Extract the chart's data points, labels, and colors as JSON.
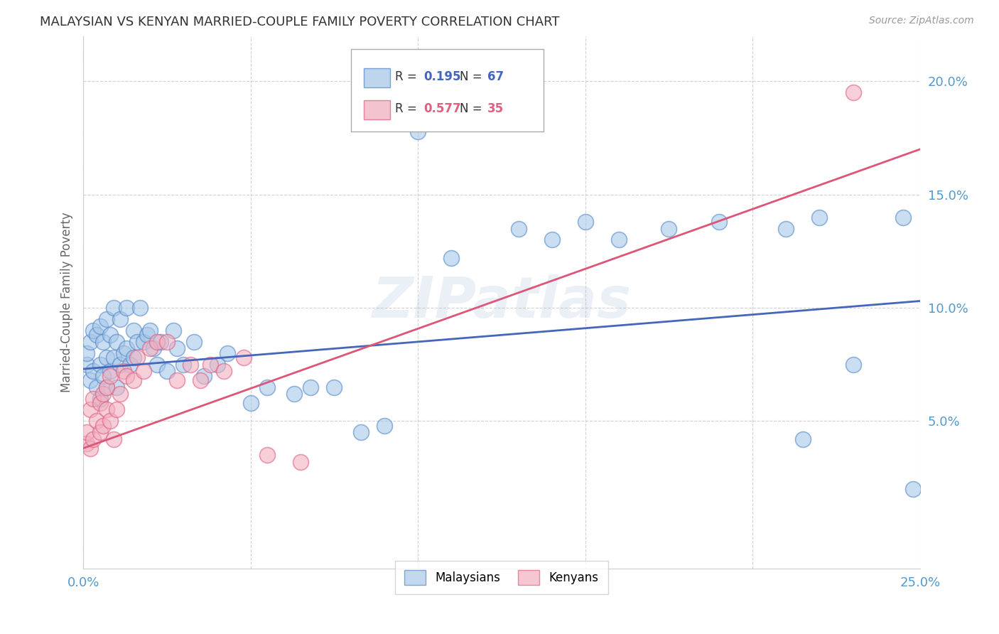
{
  "title": "MALAYSIAN VS KENYAN MARRIED-COUPLE FAMILY POVERTY CORRELATION CHART",
  "source": "Source: ZipAtlas.com",
  "ylabel": "Married-Couple Family Poverty",
  "watermark": "ZIPatlas",
  "xlim": [
    0.0,
    0.25
  ],
  "ylim": [
    -0.015,
    0.22
  ],
  "xticks": [
    0.0,
    0.05,
    0.1,
    0.15,
    0.2,
    0.25
  ],
  "yticks": [
    0.05,
    0.1,
    0.15,
    0.2
  ],
  "xticklabels": [
    "0.0%",
    "",
    "",
    "",
    "",
    "25.0%"
  ],
  "yticklabels": [
    "5.0%",
    "10.0%",
    "15.0%",
    "20.0%"
  ],
  "blue_color": "#a8c8e8",
  "pink_color": "#f0b0c0",
  "blue_edge_color": "#5588cc",
  "pink_edge_color": "#e06080",
  "blue_line_color": "#4466bb",
  "pink_line_color": "#dd5577",
  "tick_color": "#5599cc",
  "grid_color": "#cccccc",
  "background_color": "#ffffff",
  "blue_line_y0": 0.073,
  "blue_line_y1": 0.103,
  "pink_line_y0": 0.038,
  "pink_line_y1": 0.17,
  "blue_x": [
    0.001,
    0.001,
    0.002,
    0.002,
    0.003,
    0.003,
    0.004,
    0.004,
    0.005,
    0.005,
    0.005,
    0.006,
    0.006,
    0.007,
    0.007,
    0.007,
    0.008,
    0.008,
    0.009,
    0.009,
    0.01,
    0.01,
    0.011,
    0.011,
    0.012,
    0.013,
    0.013,
    0.014,
    0.015,
    0.015,
    0.016,
    0.017,
    0.018,
    0.019,
    0.02,
    0.021,
    0.022,
    0.023,
    0.025,
    0.027,
    0.028,
    0.03,
    0.033,
    0.036,
    0.04,
    0.043,
    0.05,
    0.055,
    0.063,
    0.068,
    0.075,
    0.083,
    0.09,
    0.1,
    0.11,
    0.13,
    0.14,
    0.15,
    0.16,
    0.175,
    0.19,
    0.21,
    0.215,
    0.22,
    0.23,
    0.245,
    0.248
  ],
  "blue_y": [
    0.075,
    0.08,
    0.068,
    0.085,
    0.072,
    0.09,
    0.065,
    0.088,
    0.06,
    0.075,
    0.092,
    0.07,
    0.085,
    0.065,
    0.078,
    0.095,
    0.072,
    0.088,
    0.078,
    0.1,
    0.085,
    0.065,
    0.095,
    0.075,
    0.08,
    0.1,
    0.082,
    0.075,
    0.09,
    0.078,
    0.085,
    0.1,
    0.085,
    0.088,
    0.09,
    0.082,
    0.075,
    0.085,
    0.072,
    0.09,
    0.082,
    0.075,
    0.085,
    0.07,
    0.075,
    0.08,
    0.058,
    0.065,
    0.062,
    0.065,
    0.065,
    0.045,
    0.048,
    0.178,
    0.122,
    0.135,
    0.13,
    0.138,
    0.13,
    0.135,
    0.138,
    0.135,
    0.042,
    0.14,
    0.075,
    0.14,
    0.02
  ],
  "pink_x": [
    0.001,
    0.001,
    0.002,
    0.002,
    0.003,
    0.003,
    0.004,
    0.005,
    0.005,
    0.006,
    0.006,
    0.007,
    0.007,
    0.008,
    0.008,
    0.009,
    0.01,
    0.011,
    0.012,
    0.013,
    0.015,
    0.016,
    0.018,
    0.02,
    0.022,
    0.025,
    0.028,
    0.032,
    0.035,
    0.038,
    0.042,
    0.048,
    0.055,
    0.065,
    0.23
  ],
  "pink_y": [
    0.04,
    0.045,
    0.038,
    0.055,
    0.042,
    0.06,
    0.05,
    0.045,
    0.058,
    0.048,
    0.062,
    0.055,
    0.065,
    0.05,
    0.07,
    0.042,
    0.055,
    0.062,
    0.072,
    0.07,
    0.068,
    0.078,
    0.072,
    0.082,
    0.085,
    0.085,
    0.068,
    0.075,
    0.068,
    0.075,
    0.072,
    0.078,
    0.035,
    0.032,
    0.195
  ]
}
